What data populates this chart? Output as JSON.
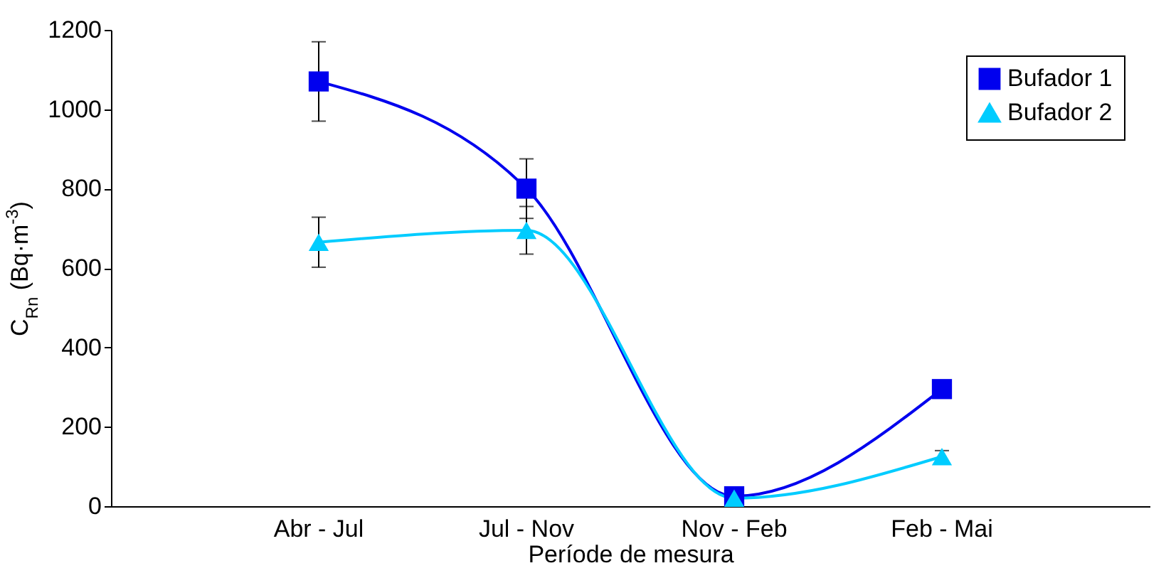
{
  "chart_data": {
    "type": "line",
    "xlabel": "Període de mesura",
    "ylabel": "C$_{Rn}$ (Bq·m$^{-3}$)",
    "categories": [
      "Abr - Jul",
      "Jul - Nov",
      "Nov - Feb",
      "Feb - Mai"
    ],
    "series": [
      {
        "name": "Bufador 1",
        "color": "#0000ee",
        "marker": "square",
        "values": [
          1070,
          800,
          25,
          295
        ],
        "errors": [
          100,
          75,
          null,
          null
        ]
      },
      {
        "name": "Bufador 2",
        "color": "#00ccff",
        "marker": "triangle",
        "values": [
          665,
          695,
          20,
          125
        ],
        "errors": [
          63,
          60,
          null,
          15
        ]
      }
    ],
    "ylim": [
      0,
      1200
    ],
    "yticks": [
      0,
      200,
      400,
      600,
      800,
      1000,
      1200
    ],
    "grid": false,
    "legend": "top right"
  }
}
